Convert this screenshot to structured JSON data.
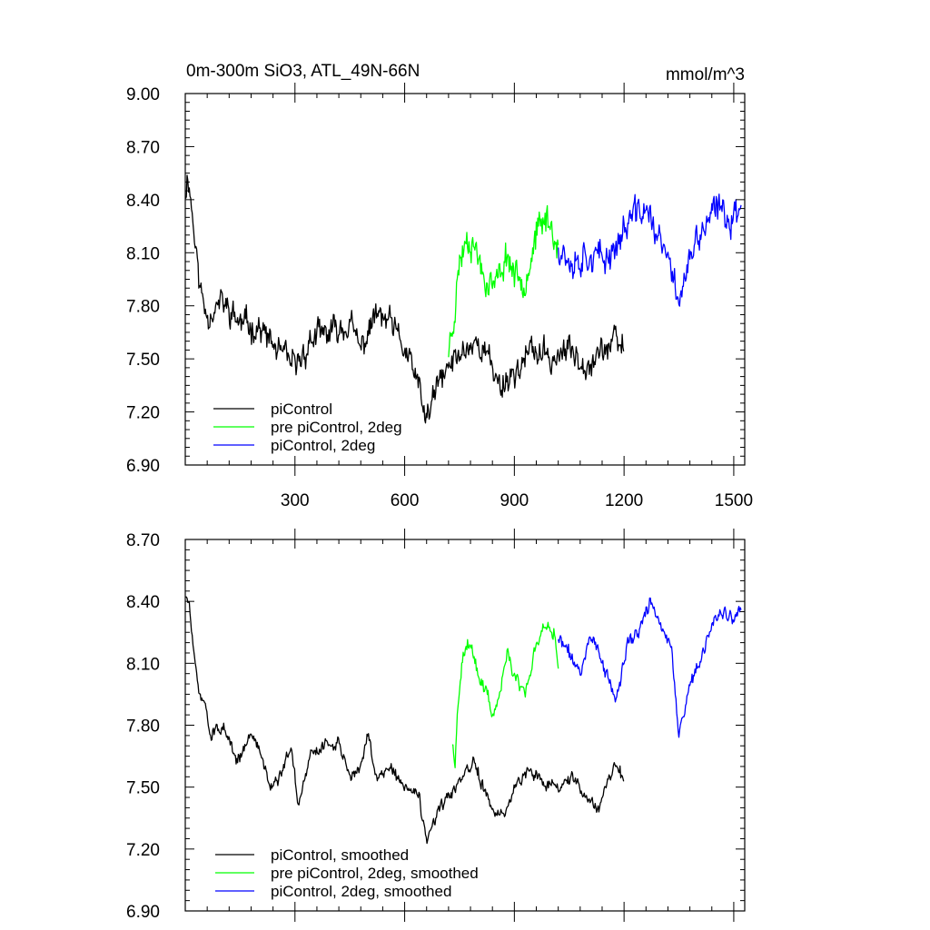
{
  "chart_data": [
    {
      "type": "line",
      "title_left": "0m-300m SiO3, ATL_49N-66N",
      "title_right": "mmol/m^3",
      "xlim": [
        0,
        1530
      ],
      "ylim": [
        6.9,
        9.0
      ],
      "xticks": [
        300,
        600,
        900,
        1200,
        1500
      ],
      "xtick_labels": [
        "300",
        "600",
        "900",
        "1200",
        "1500"
      ],
      "yticks": [
        6.9,
        7.2,
        7.5,
        7.8,
        8.1,
        8.4,
        8.7,
        9.0
      ],
      "ytick_labels": [
        "6.90",
        "7.20",
        "7.50",
        "7.80",
        "8.10",
        "8.40",
        "8.70",
        "9.00"
      ],
      "legend": [
        "piControl",
        "pre piControl, 2deg",
        "piControl, 2deg"
      ],
      "series": [
        {
          "name": "piControl",
          "color": "#000000",
          "x_range": [
            1,
            1200
          ],
          "anchors": [
            [
              1,
              8.45
            ],
            [
              8,
              8.55
            ],
            [
              25,
              8.2
            ],
            [
              40,
              7.9
            ],
            [
              60,
              7.75
            ],
            [
              100,
              7.82
            ],
            [
              150,
              7.7
            ],
            [
              200,
              7.68
            ],
            [
              250,
              7.55
            ],
            [
              300,
              7.45
            ],
            [
              350,
              7.62
            ],
            [
              400,
              7.65
            ],
            [
              450,
              7.7
            ],
            [
              480,
              7.55
            ],
            [
              520,
              7.75
            ],
            [
              560,
              7.7
            ],
            [
              600,
              7.55
            ],
            [
              630,
              7.4
            ],
            [
              660,
              7.15
            ],
            [
              690,
              7.35
            ],
            [
              720,
              7.45
            ],
            [
              760,
              7.55
            ],
            [
              800,
              7.6
            ],
            [
              830,
              7.5
            ],
            [
              860,
              7.35
            ],
            [
              900,
              7.42
            ],
            [
              950,
              7.55
            ],
            [
              1000,
              7.5
            ],
            [
              1050,
              7.55
            ],
            [
              1100,
              7.48
            ],
            [
              1140,
              7.55
            ],
            [
              1180,
              7.6
            ],
            [
              1200,
              7.55
            ]
          ],
          "noise": 0.12,
          "seed": 11
        },
        {
          "name": "pre piControl, 2deg",
          "color": "#00ff00",
          "x_range": [
            720,
            1020
          ],
          "anchors": [
            [
              720,
              7.55
            ],
            [
              735,
              7.75
            ],
            [
              750,
              8.05
            ],
            [
              770,
              8.2
            ],
            [
              790,
              8.15
            ],
            [
              820,
              7.95
            ],
            [
              850,
              7.92
            ],
            [
              880,
              8.1
            ],
            [
              900,
              7.98
            ],
            [
              930,
              7.95
            ],
            [
              960,
              8.2
            ],
            [
              990,
              8.3
            ],
            [
              1020,
              8.15
            ]
          ],
          "noise": 0.13,
          "seed": 23
        },
        {
          "name": "piControl, 2deg",
          "color": "#0000ff",
          "x_range": [
            1020,
            1520
          ],
          "anchors": [
            [
              1020,
              8.15
            ],
            [
              1060,
              8.05
            ],
            [
              1100,
              8.1
            ],
            [
              1140,
              8.05
            ],
            [
              1180,
              8.15
            ],
            [
              1220,
              8.3
            ],
            [
              1260,
              8.35
            ],
            [
              1290,
              8.2
            ],
            [
              1320,
              8.05
            ],
            [
              1350,
              7.85
            ],
            [
              1380,
              8.05
            ],
            [
              1420,
              8.25
            ],
            [
              1460,
              8.35
            ],
            [
              1490,
              8.3
            ],
            [
              1520,
              8.35
            ]
          ],
          "noise": 0.14,
          "seed": 37
        }
      ]
    },
    {
      "type": "line",
      "xlim": [
        0,
        1530
      ],
      "ylim": [
        6.9,
        8.7
      ],
      "xticks": [
        300,
        600,
        900,
        1200,
        1500
      ],
      "yticks": [
        6.9,
        7.2,
        7.5,
        7.8,
        8.1,
        8.4,
        8.7
      ],
      "ytick_labels": [
        "6.90",
        "7.20",
        "7.50",
        "7.80",
        "8.10",
        "8.40",
        "8.70"
      ],
      "legend": [
        "piControl, smoothed",
        "pre piControl, 2deg, smoothed",
        "piControl, 2deg, smoothed"
      ],
      "series": [
        {
          "name": "piControl, smoothed",
          "color": "#000000",
          "x_range": [
            1,
            1200
          ],
          "anchors": [
            [
              1,
              8.42
            ],
            [
              10,
              8.4
            ],
            [
              25,
              8.1
            ],
            [
              40,
              7.95
            ],
            [
              55,
              7.9
            ],
            [
              70,
              7.75
            ],
            [
              100,
              7.8
            ],
            [
              140,
              7.62
            ],
            [
              180,
              7.75
            ],
            [
              200,
              7.7
            ],
            [
              230,
              7.52
            ],
            [
              260,
              7.55
            ],
            [
              290,
              7.7
            ],
            [
              310,
              7.4
            ],
            [
              340,
              7.65
            ],
            [
              380,
              7.7
            ],
            [
              420,
              7.72
            ],
            [
              450,
              7.55
            ],
            [
              480,
              7.6
            ],
            [
              500,
              7.75
            ],
            [
              520,
              7.55
            ],
            [
              560,
              7.6
            ],
            [
              600,
              7.5
            ],
            [
              640,
              7.45
            ],
            [
              660,
              7.22
            ],
            [
              690,
              7.38
            ],
            [
              720,
              7.45
            ],
            [
              750,
              7.52
            ],
            [
              790,
              7.62
            ],
            [
              820,
              7.48
            ],
            [
              850,
              7.35
            ],
            [
              880,
              7.38
            ],
            [
              900,
              7.5
            ],
            [
              940,
              7.6
            ],
            [
              980,
              7.52
            ],
            [
              1020,
              7.5
            ],
            [
              1060,
              7.55
            ],
            [
              1100,
              7.45
            ],
            [
              1130,
              7.4
            ],
            [
              1160,
              7.55
            ],
            [
              1180,
              7.62
            ],
            [
              1200,
              7.52
            ]
          ],
          "noise": 0.045,
          "seed": 51
        },
        {
          "name": "pre piControl, 2deg, smoothed",
          "color": "#00ff00",
          "x_range": [
            730,
            1020
          ],
          "anchors": [
            [
              730,
              7.7
            ],
            [
              738,
              7.6
            ],
            [
              745,
              7.9
            ],
            [
              760,
              8.15
            ],
            [
              780,
              8.22
            ],
            [
              800,
              8.05
            ],
            [
              820,
              7.98
            ],
            [
              840,
              7.85
            ],
            [
              860,
              7.95
            ],
            [
              880,
              8.15
            ],
            [
              900,
              8.05
            ],
            [
              930,
              7.95
            ],
            [
              960,
              8.2
            ],
            [
              990,
              8.3
            ],
            [
              1010,
              8.25
            ],
            [
              1020,
              8.12
            ]
          ],
          "noise": 0.05,
          "seed": 63
        },
        {
          "name": "piControl, 2deg, smoothed",
          "color": "#0000ff",
          "x_range": [
            1020,
            1520
          ],
          "anchors": [
            [
              1020,
              8.22
            ],
            [
              1050,
              8.15
            ],
            [
              1080,
              8.05
            ],
            [
              1110,
              8.25
            ],
            [
              1140,
              8.1
            ],
            [
              1180,
              7.92
            ],
            [
              1210,
              8.2
            ],
            [
              1240,
              8.25
            ],
            [
              1270,
              8.4
            ],
            [
              1300,
              8.3
            ],
            [
              1330,
              8.15
            ],
            [
              1350,
              7.75
            ],
            [
              1380,
              8.0
            ],
            [
              1410,
              8.1
            ],
            [
              1440,
              8.3
            ],
            [
              1470,
              8.35
            ],
            [
              1500,
              8.3
            ],
            [
              1520,
              8.35
            ]
          ],
          "noise": 0.05,
          "seed": 71
        }
      ]
    }
  ]
}
